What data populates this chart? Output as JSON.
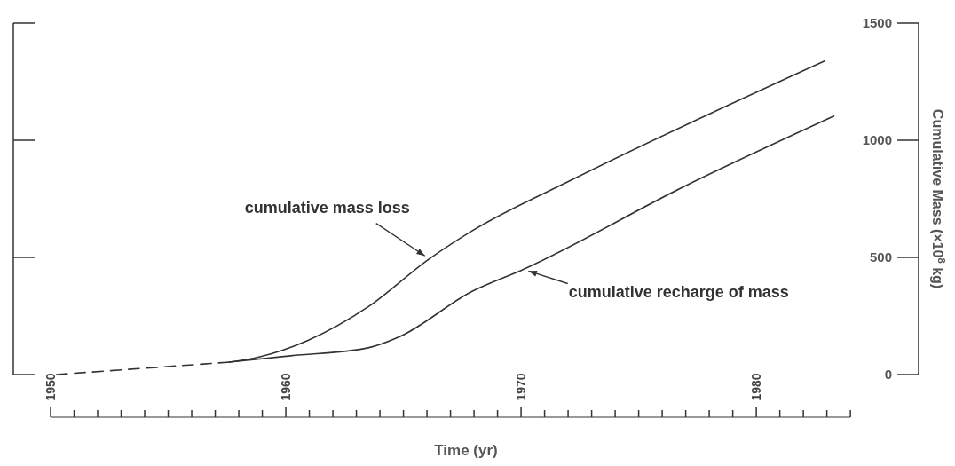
{
  "chart_data": {
    "type": "line",
    "xlabel": "Time (yr)",
    "y2label": "Cumulative Mass (×10$^{8}$ kg)",
    "xlim": [
      1950,
      1986.9
    ],
    "xticks": [
      1950,
      1960,
      1970,
      1980
    ],
    "y2lim": [
      0,
      1500
    ],
    "y2ticks": [
      0,
      500,
      1000,
      1500
    ],
    "grid": false,
    "marker": "none",
    "series": [
      {
        "name": "cumulative mass loss",
        "color": "#333333",
        "axis": "y2",
        "line_style": "solid",
        "x": [
          1957.6,
          1958.9,
          1960.9,
          1963.5,
          1966.1,
          1967.9,
          1972.2,
          1982.9
        ],
        "values": [
          53,
          76,
          144,
          289,
          494,
          612,
          833,
          1338
        ]
      },
      {
        "name": "cumulative recharge of mass",
        "color": "#333333",
        "axis": "y2",
        "line_style": "solid",
        "x": [
          1957.6,
          1960.2,
          1963.5,
          1964.8,
          1967.9,
          1970.1,
          1977.0,
          1983.3
        ],
        "values": [
          53,
          80,
          114,
          160,
          354,
          449,
          806,
          1103
        ]
      },
      {
        "color": "#333333",
        "axis": "y2",
        "line_style": "dashed",
        "x": [
          1950.25,
          1957.6
        ],
        "values": [
          0,
          53
        ]
      }
    ]
  }
}
